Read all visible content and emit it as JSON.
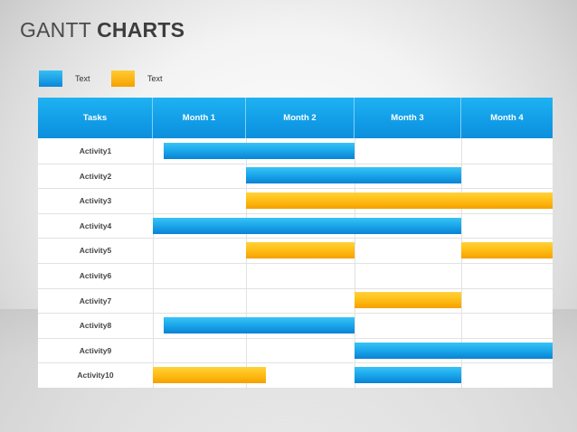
{
  "title": {
    "light": "GANTT",
    "bold": "CHARTS"
  },
  "legend": [
    {
      "label": "Text",
      "color": "#1aa6ea"
    },
    {
      "label": "Text",
      "color": "#ffbd14"
    }
  ],
  "columns": [
    "Tasks",
    "Month 1",
    "Month 2",
    "Month 3",
    "Month 4"
  ],
  "colors": {
    "blue": "#1aa6ea",
    "orange": "#ffbd14",
    "header": "#129ee8"
  },
  "rows": [
    {
      "label": "Activity1",
      "bars": [
        {
          "start": 0.12,
          "end": 2.0,
          "color": "blue"
        }
      ]
    },
    {
      "label": "Activity2",
      "bars": [
        {
          "start": 1.0,
          "end": 3.0,
          "color": "blue"
        }
      ]
    },
    {
      "label": "Activity3",
      "bars": [
        {
          "start": 1.0,
          "end": 4.0,
          "color": "orange"
        }
      ]
    },
    {
      "label": "Activity4",
      "bars": [
        {
          "start": 0.0,
          "end": 3.0,
          "color": "blue"
        }
      ]
    },
    {
      "label": "Activity5",
      "bars": [
        {
          "start": 1.0,
          "end": 2.0,
          "color": "orange"
        },
        {
          "start": 3.0,
          "end": 4.0,
          "color": "orange"
        }
      ]
    },
    {
      "label": "Activity6",
      "bars": []
    },
    {
      "label": "Activity7",
      "bars": [
        {
          "start": 2.0,
          "end": 3.0,
          "color": "orange"
        }
      ]
    },
    {
      "label": "Activity8",
      "bars": [
        {
          "start": 0.12,
          "end": 2.0,
          "color": "blue"
        }
      ]
    },
    {
      "label": "Activity9",
      "bars": [
        {
          "start": 2.0,
          "end": 4.0,
          "color": "blue"
        }
      ]
    },
    {
      "label": "Activity10",
      "bars": [
        {
          "start": 0.0,
          "end": 1.18,
          "color": "orange"
        },
        {
          "start": 2.0,
          "end": 3.0,
          "color": "blue"
        }
      ]
    }
  ]
}
